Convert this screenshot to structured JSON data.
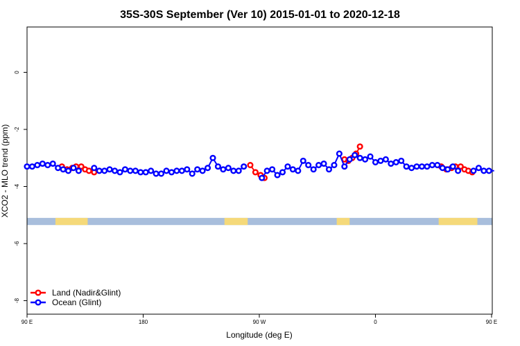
{
  "chart_data": {
    "type": "scatter",
    "title": "35S-30S September (Ver 10)   2015-01-01 to 2020-12-18",
    "xlabel": "Longitude (deg E)",
    "ylabel": "XCO2 - MLO trend (ppm)",
    "xlim": [
      90,
      450
    ],
    "ylim": [
      -8.5,
      1.6
    ],
    "x_ticks": [
      {
        "value": 90,
        "label": "90 E"
      },
      {
        "value": 180,
        "label": "180"
      },
      {
        "value": 270,
        "label": "90 W"
      },
      {
        "value": 360,
        "label": "0"
      },
      {
        "value": 450,
        "label": "90 E"
      },
      {
        "value": 540,
        "label": "180"
      }
    ],
    "y_ticks": [
      {
        "value": 0,
        "label": "0"
      },
      {
        "value": -2,
        "label": "-2"
      },
      {
        "value": -4,
        "label": "-4"
      },
      {
        "value": -6,
        "label": "-6"
      },
      {
        "value": -8,
        "label": "-8"
      }
    ],
    "grid": false,
    "legend_position": "bottom-left",
    "map_strip": {
      "y_range": [
        -5.35,
        -5.1
      ],
      "ocean_color": "#a8bedc",
      "land_color": "#f5d97a",
      "land_segments": [
        [
          112,
          137
        ],
        [
          243,
          261
        ],
        [
          330,
          340
        ],
        [
          409,
          439
        ]
      ]
    },
    "series": [
      {
        "name": "Land (Nadir&Glint)",
        "color": "#ff0000",
        "x": [
          117,
          121,
          125,
          128,
          132,
          135,
          138,
          142,
          263,
          267,
          271,
          274,
          336,
          339,
          342,
          345,
          348,
          411,
          415,
          419,
          422,
          426,
          429,
          432,
          435
        ],
        "y": [
          -3.3,
          -3.4,
          -3.35,
          -3.3,
          -3.3,
          -3.4,
          -3.45,
          -3.5,
          -3.25,
          -3.5,
          -3.6,
          -3.7,
          -3.05,
          -3.1,
          -3.0,
          -2.85,
          -2.6,
          -3.3,
          -3.4,
          -3.35,
          -3.3,
          -3.3,
          -3.4,
          -3.45,
          -3.5
        ]
      },
      {
        "name": "Ocean (Glint)",
        "color": "#0000ff",
        "x": [
          90,
          94,
          98,
          102,
          106,
          110,
          114,
          118,
          122,
          126,
          130,
          142,
          146,
          150,
          154,
          158,
          162,
          166,
          170,
          174,
          178,
          182,
          186,
          190,
          194,
          198,
          202,
          206,
          210,
          214,
          218,
          222,
          226,
          230,
          234,
          238,
          242,
          246,
          250,
          254,
          258,
          272,
          276,
          280,
          284,
          288,
          292,
          296,
          300,
          304,
          308,
          312,
          316,
          320,
          324,
          328,
          332,
          336,
          340,
          344,
          348,
          352,
          356,
          360,
          364,
          368,
          372,
          376,
          380,
          384,
          388,
          392,
          396,
          400,
          404,
          408,
          412,
          416,
          420,
          424,
          436,
          440,
          444,
          448,
          452
        ],
        "y": [
          -3.3,
          -3.3,
          -3.25,
          -3.2,
          -3.25,
          -3.2,
          -3.35,
          -3.4,
          -3.45,
          -3.35,
          -3.45,
          -3.35,
          -3.45,
          -3.45,
          -3.4,
          -3.45,
          -3.5,
          -3.4,
          -3.45,
          -3.45,
          -3.5,
          -3.5,
          -3.45,
          -3.55,
          -3.55,
          -3.45,
          -3.5,
          -3.45,
          -3.45,
          -3.4,
          -3.55,
          -3.4,
          -3.45,
          -3.35,
          -3.0,
          -3.3,
          -3.4,
          -3.35,
          -3.45,
          -3.45,
          -3.3,
          -3.7,
          -3.45,
          -3.4,
          -3.6,
          -3.5,
          -3.3,
          -3.4,
          -3.45,
          -3.1,
          -3.25,
          -3.4,
          -3.25,
          -3.2,
          -3.4,
          -3.25,
          -2.85,
          -3.3,
          -3.05,
          -2.9,
          -3.0,
          -3.05,
          -2.95,
          -3.15,
          -3.1,
          -3.05,
          -3.2,
          -3.15,
          -3.1,
          -3.3,
          -3.35,
          -3.3,
          -3.3,
          -3.3,
          -3.25,
          -3.25,
          -3.35,
          -3.4,
          -3.3,
          -3.45,
          -3.45,
          -3.35,
          -3.45,
          -3.45,
          -3.45
        ]
      }
    ]
  }
}
